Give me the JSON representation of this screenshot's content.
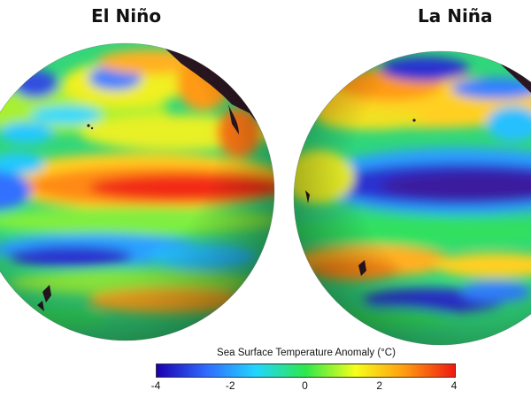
{
  "panels": [
    {
      "title": "El Niño",
      "pattern": "warm equatorial Pacific anomaly"
    },
    {
      "title": "La Niña",
      "pattern": "cool equatorial Pacific anomaly"
    }
  ],
  "legend": {
    "title": "Sea Surface Temperature Anomaly (°C)",
    "ticks": [
      "-4",
      "-2",
      "0",
      "2",
      "4"
    ],
    "range": [
      -4,
      4
    ],
    "colors": [
      "#1a00b0",
      "#2f6bff",
      "#21d6ff",
      "#2ee84a",
      "#f5ff1a",
      "#ff9a10",
      "#f01a10"
    ]
  },
  "colors": {
    "land": "#2a1621",
    "background": "#ffffff"
  }
}
